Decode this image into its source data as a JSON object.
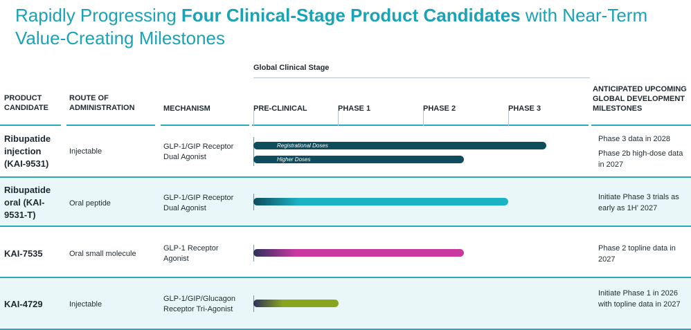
{
  "title": {
    "part1": "Rapidly  Progressing ",
    "bold": "Four Clinical-Stage Product Candidates",
    "part2": " with Near-Term Value-Creating Milestones"
  },
  "stage_header": "Global Clinical Stage",
  "columns": {
    "product": "PRODUCT CANDIDATE",
    "route": "ROUTE OF ADMINISTRATION",
    "mechanism": "MECHANISM",
    "preclinical": "PRE-CLINICAL",
    "phase1": "PHASE 1",
    "phase2": "PHASE 2",
    "phase3": "PHASE 3",
    "milestones": "ANTICIPATED UPCOMING GLOBAL DEVELOPMENT MILESTONES"
  },
  "rows": [
    {
      "candidate": "Ribupatide injection (KAI-9531)",
      "route": "Injectable",
      "mechanism": "GLP-1/GIP Receptor Dual Agonist",
      "milestone1": "Phase 3 data in 2028",
      "milestone2": "Phase 2b high-dose data in 2027",
      "bar1_label": "Registrational Doses",
      "bar2_label": "Higher Doses"
    },
    {
      "candidate": "Ribupatide oral (KAI-9531-T)",
      "route": "Oral peptide",
      "mechanism": "GLP-1/GIP Receptor Dual Agonist",
      "milestone1": "Initiate Phase 3 trials as early as 1H’ 2027"
    },
    {
      "candidate": "KAI-7535",
      "route": "Oral small molecule",
      "mechanism": "GLP-1 Receptor Agonist",
      "milestone1": "Phase 2 topline data in 2027"
    },
    {
      "candidate": "KAI-4729",
      "route": "Injectable",
      "mechanism": "GLP-1/GIP/Glucagon Receptor Tri-Agonist",
      "milestone1": "Initiate Phase 1 in 2026 with topline data in 2027"
    }
  ],
  "progress": {
    "phase_scale": [
      "PRE-CLINICAL",
      "PHASE 1",
      "PHASE 2",
      "PHASE 3"
    ],
    "bars": [
      {
        "candidate": "KAI-9531 registrational doses",
        "stage_reached": 3.45
      },
      {
        "candidate": "KAI-9531 higher doses",
        "stage_reached": 2.48
      },
      {
        "candidate": "KAI-9531-T",
        "stage_reached": 3.0
      },
      {
        "candidate": "KAI-7535",
        "stage_reached": 2.48
      },
      {
        "candidate": "KAI-4729",
        "stage_reached": 1.0
      }
    ]
  },
  "colors": {
    "accent": "#1aa3b5",
    "row_tint": "#eaf7f9",
    "kai9531": "#0f4c5c",
    "kai9531t": "#1ab3c4",
    "kai7535": "#c8389f",
    "kai4729": "#8aa51f",
    "bar_start": "#2d2f5a"
  }
}
